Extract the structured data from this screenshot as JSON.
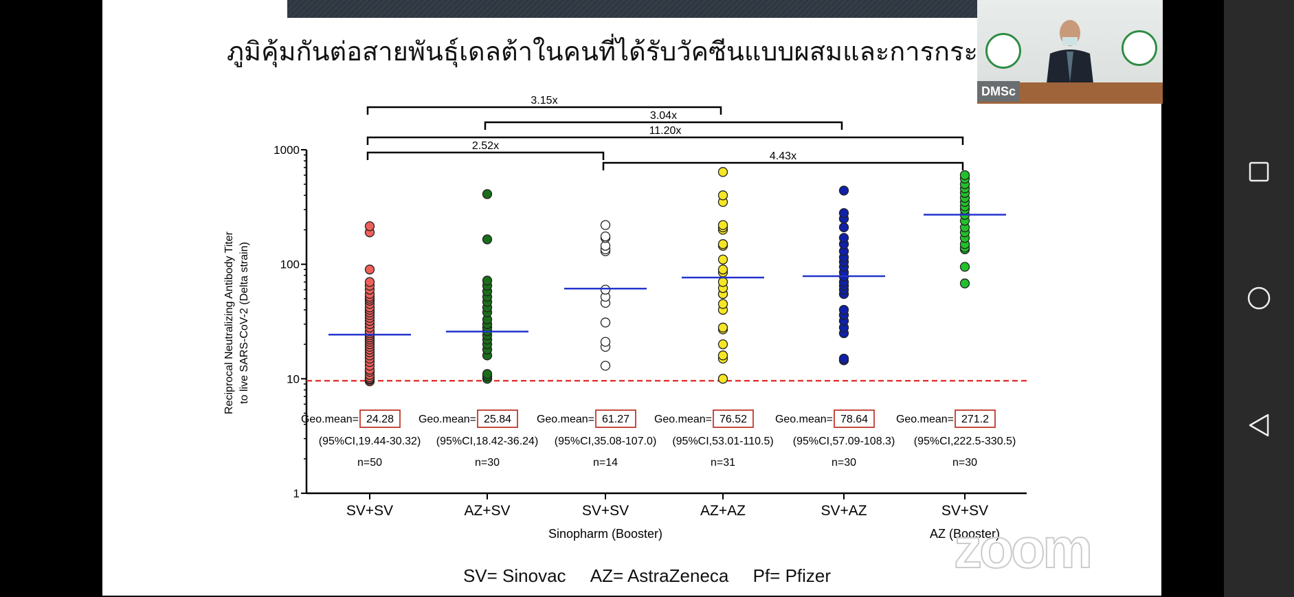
{
  "slide_title": "ภูมิคุ้มกันต่อสายพันธุ์เดลต้าในคนที่ได้รับวัคซีนแบบผสมและการกระตุ้น",
  "video": {
    "label": "DMSc"
  },
  "legend": [
    "SV= Sinovac",
    "AZ= AstraZeneca",
    "Pf= Pfizer"
  ],
  "watermark": "zoom",
  "nav_icons": [
    "recent-apps-icon",
    "home-icon",
    "back-icon"
  ],
  "chart_data": {
    "type": "scatter",
    "ylabel_lines": [
      "Reciprocal Neutralizing Antibody Titer",
      "to live SARS-CoV-2 (Delta strain)"
    ],
    "yscale": "log",
    "ylim": [
      1,
      1000
    ],
    "yticks": [
      "1",
      "10",
      "100",
      "1000"
    ],
    "threshold": 9.6,
    "threshold_color": "#e53935",
    "mean_line_color": "#2233cc",
    "group_labels": [
      {
        "text": "Sinopharm (Booster)",
        "group": 2
      },
      {
        "text": "AZ (Booster)",
        "group": 5
      }
    ],
    "comparisons": [
      {
        "from": 0,
        "to": 3,
        "label": "3.15x"
      },
      {
        "from": 1,
        "to": 4,
        "label": "3.04x"
      },
      {
        "from": 0,
        "to": 5,
        "label": "11.20x"
      },
      {
        "from": 0,
        "to": 2,
        "label": "2.52x"
      },
      {
        "from": 2,
        "to": 5,
        "label": "4.43x"
      }
    ],
    "categories": [
      {
        "label": "SV+SV",
        "color": "#f0605a",
        "geo_label": "Geo.mean=",
        "geo_mean": "24.28",
        "ci": "(95%CI,19.44-30.32)",
        "n": "n=50",
        "values": [
          9.5,
          9.8,
          10,
          10.3,
          10.8,
          11.5,
          12,
          13,
          14,
          15,
          16,
          17,
          18,
          19,
          20,
          21,
          22,
          23,
          24,
          25,
          26,
          28,
          30,
          32,
          34,
          36,
          38,
          40,
          42,
          45,
          48,
          50,
          52,
          55,
          60,
          65,
          70,
          90,
          190,
          215
        ]
      },
      {
        "label": "AZ+SV",
        "color": "#1a6e1a",
        "geo_label": "Geo.mean=",
        "geo_mean": "25.84",
        "ci": "(95%CI,18.42-36.24)",
        "n": "n=30",
        "values": [
          10,
          10.5,
          11,
          16,
          18,
          20,
          22,
          24,
          26,
          28,
          30,
          33,
          38,
          42,
          47,
          52,
          58,
          65,
          72,
          165,
          410
        ]
      },
      {
        "label": "SV+SV",
        "color": "#ffffff",
        "geo_label": "Geo.mean=",
        "geo_mean": "61.27",
        "ci": "(95%CI,35.08-107.0)",
        "n": "n=14",
        "values": [
          13,
          19,
          21,
          31,
          46,
          52,
          60,
          130,
          135,
          145,
          170,
          175,
          220
        ]
      },
      {
        "label": "AZ+AZ",
        "color": "#f5e626",
        "geo_label": "Geo.mean=",
        "geo_mean": "76.52",
        "ci": "(95%CI,53.01-110.5)",
        "n": "n=31",
        "values": [
          10,
          15,
          16,
          20,
          27,
          28,
          40,
          45,
          55,
          55,
          62,
          70,
          85,
          90,
          110,
          145,
          150,
          200,
          210,
          220,
          350,
          400,
          640
        ]
      },
      {
        "label": "SV+AZ",
        "color": "#1020a8",
        "geo_label": "Geo.mean=",
        "geo_mean": "78.64",
        "ci": "(95%CI,57.09-108.3)",
        "n": "n=30",
        "values": [
          14.5,
          15,
          25,
          28,
          32,
          36,
          40,
          55,
          60,
          65,
          70,
          78,
          85,
          95,
          105,
          115,
          130,
          150,
          170,
          210,
          250,
          280,
          440
        ]
      },
      {
        "label": "SV+SV",
        "color": "#22c02a",
        "geo_label": "Geo.mean=",
        "geo_mean": "271.2",
        "ci": "(95%CI,222.5-330.5)",
        "n": "n=30",
        "values": [
          68,
          95,
          135,
          140,
          150,
          170,
          190,
          210,
          240,
          270,
          300,
          320,
          350,
          380,
          420,
          460,
          500,
          560,
          600
        ]
      }
    ]
  }
}
